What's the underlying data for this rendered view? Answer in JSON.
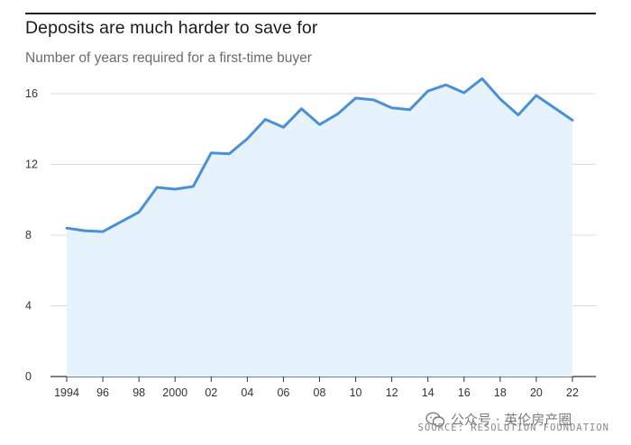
{
  "title": "Deposits are much harder to save for",
  "subtitle": "Number of years required for a first-time buyer",
  "source": "SOURCE: RESOLUTION FOUNDATION",
  "watermark": "公众号 · 英伦房产圈",
  "colors": {
    "line": "#4a90d9",
    "fill": "#e6f2fc",
    "grid": "#dcdcdc",
    "axis": "#333333"
  },
  "chart_data": {
    "type": "area",
    "title": "Deposits are much harder to save for",
    "subtitle": "Number of years required for a first-time buyer",
    "ylim": [
      0,
      16
    ],
    "xlim": [
      1994,
      2022
    ],
    "grid": true,
    "y_ticks": [
      0,
      4,
      8,
      12,
      16
    ],
    "x_ticks": [
      {
        "value": 1994,
        "label": "1994"
      },
      {
        "value": 1996,
        "label": "96"
      },
      {
        "value": 1998,
        "label": "98"
      },
      {
        "value": 2000,
        "label": "2000"
      },
      {
        "value": 2002,
        "label": "02"
      },
      {
        "value": 2004,
        "label": "04"
      },
      {
        "value": 2006,
        "label": "06"
      },
      {
        "value": 2008,
        "label": "08"
      },
      {
        "value": 2010,
        "label": "10"
      },
      {
        "value": 2012,
        "label": "12"
      },
      {
        "value": 2014,
        "label": "14"
      },
      {
        "value": 2016,
        "label": "16"
      },
      {
        "value": 2018,
        "label": "18"
      },
      {
        "value": 2020,
        "label": "20"
      },
      {
        "value": 2022,
        "label": "22"
      }
    ],
    "x": [
      1994,
      1995,
      1996,
      1997,
      1998,
      1999,
      2000,
      2001,
      2002,
      2003,
      2004,
      2005,
      2006,
      2007,
      2008,
      2009,
      2010,
      2011,
      2012,
      2013,
      2014,
      2015,
      2016,
      2017,
      2018,
      2019,
      2020,
      2021,
      2022
    ],
    "values": [
      8.4,
      8.25,
      8.2,
      8.75,
      9.3,
      10.7,
      10.6,
      10.75,
      12.65,
      12.6,
      13.45,
      14.55,
      14.1,
      15.15,
      14.25,
      14.85,
      15.75,
      15.65,
      15.2,
      15.1,
      16.15,
      16.5,
      16.05,
      16.85,
      15.7,
      14.8,
      15.9,
      15.2,
      14.5
    ]
  }
}
